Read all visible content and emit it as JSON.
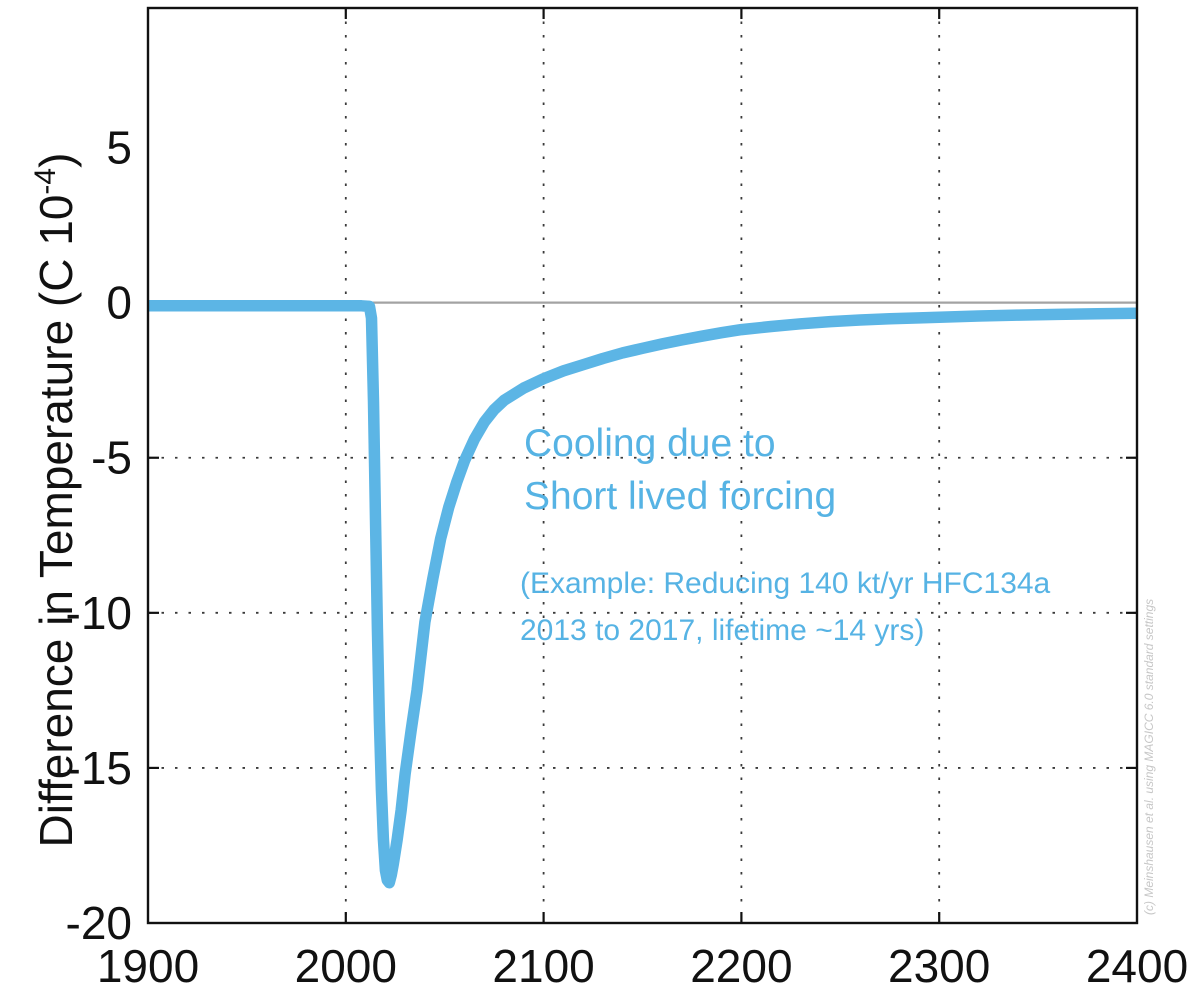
{
  "figure": {
    "background": "#ffffff",
    "watermark": "(c) Meinshausen et al. using MAGICC 6.0 standard settings",
    "watermark_color": "#c7c7c7"
  },
  "annotation": {
    "color": "#56b3e4",
    "title_line1": "Cooling due to",
    "title_line2": "Short lived forcing",
    "example_line1": "(Example: Reducing 140 kt/yr HFC134a",
    "example_line2": "2013 to 2017, lifetime ~14 yrs)"
  },
  "chart_data": {
    "type": "line",
    "title": "",
    "xlabel": "",
    "ylabel": "Difference in Temperature (C 10-4)",
    "ylabel_parts": {
      "main": "Difference in Temperature (C 10",
      "sup": "-4",
      "close": ")"
    },
    "xlim": [
      1900,
      2400
    ],
    "ylim": [
      -20,
      9.5
    ],
    "xticks": [
      1900,
      2000,
      2100,
      2200,
      2300,
      2400
    ],
    "yticks": [
      5,
      0,
      -5,
      -10,
      -15,
      -20
    ],
    "x_gridlines": [
      2000,
      2100,
      2200,
      2300
    ],
    "y_gridlines": [
      -5,
      -10,
      -15
    ],
    "grid": "dotted",
    "legend": "none",
    "zero_line_value": 0,
    "zero_line_color": "#a3a3a3",
    "frame_color": "#111111",
    "line_color": "#5cb5e5",
    "line_width": 11.5,
    "series": [
      {
        "name": "temperature_difference",
        "points": [
          [
            1900,
            -0.1
          ],
          [
            1925,
            -0.1
          ],
          [
            1950,
            -0.1
          ],
          [
            1975,
            -0.1
          ],
          [
            2000,
            -0.1
          ],
          [
            2008,
            -0.1
          ],
          [
            2012,
            -0.12
          ],
          [
            2013,
            -0.5
          ],
          [
            2014,
            -3.2
          ],
          [
            2015,
            -7
          ],
          [
            2016,
            -10.5
          ],
          [
            2017,
            -13.5
          ],
          [
            2018,
            -15.7
          ],
          [
            2019,
            -17.3
          ],
          [
            2020,
            -18.3
          ],
          [
            2021,
            -18.62
          ],
          [
            2022,
            -18.7
          ],
          [
            2023,
            -18.45
          ],
          [
            2024,
            -18.1
          ],
          [
            2026,
            -17.3
          ],
          [
            2028,
            -16.35
          ],
          [
            2030,
            -15.2
          ],
          [
            2033,
            -13.8
          ],
          [
            2036,
            -12.5
          ],
          [
            2040,
            -10.3
          ],
          [
            2044,
            -8.9
          ],
          [
            2048,
            -7.6
          ],
          [
            2052,
            -6.6
          ],
          [
            2056,
            -5.8
          ],
          [
            2060,
            -5.1
          ],
          [
            2065,
            -4.4
          ],
          [
            2070,
            -3.85
          ],
          [
            2075,
            -3.45
          ],
          [
            2080,
            -3.15
          ],
          [
            2090,
            -2.75
          ],
          [
            2100,
            -2.45
          ],
          [
            2110,
            -2.2
          ],
          [
            2120,
            -2.0
          ],
          [
            2130,
            -1.8
          ],
          [
            2140,
            -1.62
          ],
          [
            2150,
            -1.47
          ],
          [
            2160,
            -1.33
          ],
          [
            2170,
            -1.2
          ],
          [
            2180,
            -1.08
          ],
          [
            2190,
            -0.97
          ],
          [
            2200,
            -0.87
          ],
          [
            2215,
            -0.77
          ],
          [
            2230,
            -0.68
          ],
          [
            2245,
            -0.61
          ],
          [
            2260,
            -0.56
          ],
          [
            2275,
            -0.52
          ],
          [
            2290,
            -0.49
          ],
          [
            2300,
            -0.47
          ],
          [
            2320,
            -0.43
          ],
          [
            2340,
            -0.4
          ],
          [
            2360,
            -0.38
          ],
          [
            2380,
            -0.36
          ],
          [
            2400,
            -0.34
          ]
        ]
      }
    ]
  }
}
